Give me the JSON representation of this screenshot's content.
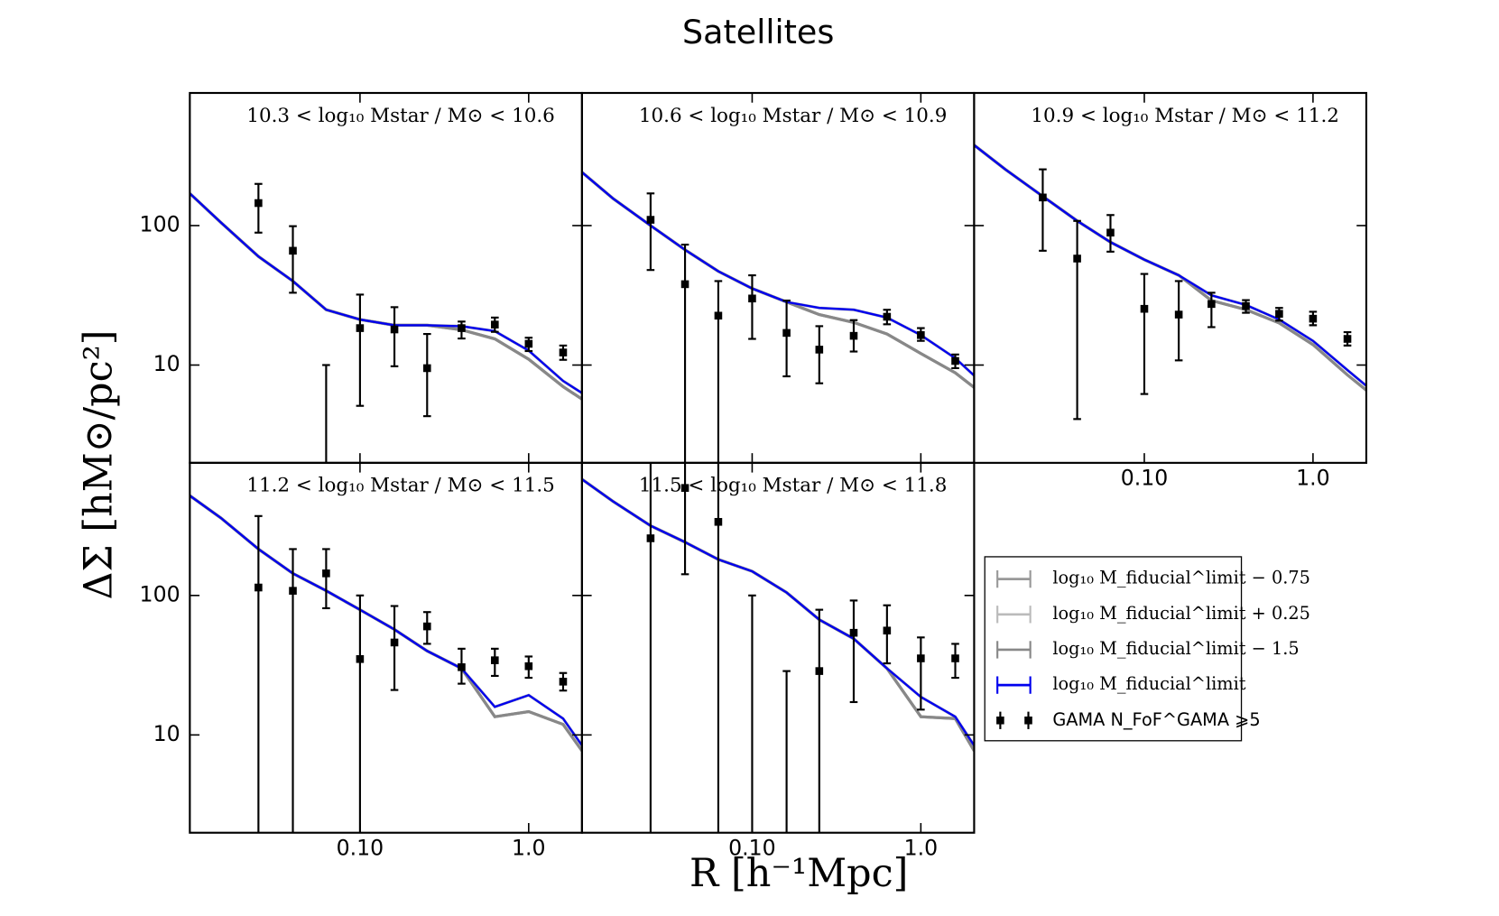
{
  "chart_data": {
    "type": "line",
    "title": "Satellites",
    "ylabel": "ΔΣ [hM⊙/pc²]",
    "xlabel": "R [h⁻¹Mpc]",
    "log_x": true,
    "log_y": true,
    "xlim": [
      0.0098,
      2.07
    ],
    "ylim": [
      1.99,
      893
    ],
    "xticks": [
      {
        "value": 0.1,
        "label": "0.10"
      },
      {
        "value": 1,
        "label": "1.0"
      }
    ],
    "yticks": [
      10,
      100
    ],
    "legend": "center right",
    "series": [
      {
        "name": "log₁₀ M_fiducial^limit − 0.75",
        "color": "#999999"
      },
      {
        "name": "log₁₀ M_fiducial^limit + 0.25",
        "color": "#bbbbbb"
      },
      {
        "name": "log₁₀ M_fiducial^limit − 1.5",
        "color": "#888888"
      },
      {
        "name": "log₁₀ M_fiducial^limit",
        "color": "#0000ee"
      }
    ],
    "gama": {
      "name": "GAMA N_FoF^GAMA ⩾5",
      "color": "#000000"
    },
    "model_x": [
      0.0098,
      0.015,
      0.025,
      0.04,
      0.063,
      0.1,
      0.16,
      0.25,
      0.4,
      0.63,
      1.0,
      1.6,
      2.07
    ],
    "gama_x": [
      0.025,
      0.04,
      0.063,
      0.1,
      0.16,
      0.25,
      0.4,
      0.63,
      1.0,
      1.6
    ],
    "panels": [
      {
        "title": "10.3 < log₁₀ Mstar / M⊙ < 10.6",
        "values": [
          [
            170,
            105,
            60,
            40,
            24.9,
            21.2,
            19.3,
            19.3,
            17.9,
            15.4,
            11,
            7.0,
            5.7
          ],
          [
            170,
            105,
            60,
            40,
            24.9,
            21.2,
            19.3,
            19.3,
            19,
            17.5,
            12.7,
            7.7,
            6.3
          ],
          [
            170,
            105,
            60,
            40,
            24.9,
            21.2,
            19.3,
            19.3,
            17.9,
            15.4,
            11,
            7.0,
            5.7
          ],
          [
            170,
            105,
            60,
            40,
            24.9,
            21.2,
            19.3,
            19.3,
            19,
            17.5,
            12.7,
            7.7,
            6.3
          ]
        ],
        "gama_values": [
          145,
          66,
          null,
          18.4,
          18,
          9.5,
          18.4,
          19.5,
          14.2,
          12.3
        ],
        "gama_lower": [
          89,
          33,
          null,
          5.1,
          9.8,
          4.3,
          15.5,
          17.3,
          12.6,
          10.9
        ],
        "gama_upper": [
          199,
          99,
          10,
          32,
          26,
          16.7,
          20.5,
          21.9,
          15.7,
          13.8
        ]
      },
      {
        "title": "10.6 < log₁₀ Mstar / M⊙ < 10.9",
        "values": [
          [
            241,
            156,
            100,
            67,
            47,
            35.4,
            28.3,
            23,
            20.2,
            16.7,
            12.1,
            8.8,
            6.9
          ],
          [
            241,
            156,
            100,
            67,
            47,
            35.4,
            28.3,
            25.7,
            24.9,
            21.9,
            16.4,
            11.2,
            8.4
          ],
          [
            241,
            156,
            100,
            67,
            47,
            35.4,
            28.3,
            23,
            20.2,
            16.7,
            12.1,
            8.8,
            6.9
          ],
          [
            241,
            156,
            100,
            67,
            47,
            35.4,
            28.3,
            25.7,
            24.9,
            21.9,
            16.4,
            11.2,
            8.4
          ]
        ],
        "gama_values": [
          110,
          38,
          22.6,
          30,
          17,
          12.9,
          16.2,
          22.2,
          16.4,
          10.7
        ],
        "gama_lower": [
          48,
          null,
          null,
          15.4,
          8.3,
          7.4,
          12.5,
          19.6,
          14.9,
          9.5
        ],
        "gama_upper": [
          170,
          73,
          40,
          44,
          29,
          19,
          21,
          24.9,
          18.4,
          11.9
        ]
      },
      {
        "title": "10.9 < log₁₀ Mstar / M⊙ < 11.2",
        "values": [
          [
            377,
            253,
            162,
            108,
            76,
            57,
            44,
            29,
            25,
            20,
            14,
            8.5,
            6.6
          ],
          [
            377,
            253,
            162,
            108,
            76,
            57,
            44,
            31.6,
            27,
            21.2,
            14.9,
            9.2,
            7.1
          ],
          [
            377,
            253,
            162,
            108,
            76,
            57,
            44,
            29,
            25,
            20,
            14,
            8.5,
            6.6
          ],
          [
            377,
            253,
            162,
            108,
            76,
            57,
            44,
            31.6,
            27,
            21.2,
            14.9,
            9.2,
            7.1
          ]
        ],
        "gama_values": [
          159,
          58,
          89,
          25.3,
          23,
          27.4,
          26.5,
          23.3,
          21.5,
          15.4
        ],
        "gama_lower": [
          66,
          4.1,
          65,
          6.2,
          10.8,
          18.7,
          23.7,
          20.8,
          19.3,
          13.8
        ],
        "gama_upper": [
          253,
          108,
          119,
          45,
          40,
          33,
          29.2,
          25.7,
          24.1,
          17.2
        ]
      },
      {
        "title": "11.2 < log₁₀ Mstar / M⊙ < 11.5",
        "values": [
          [
            519,
            359,
            215,
            144,
            108,
            79,
            57,
            40,
            30,
            13.5,
            14.7,
            11.9,
            7.7
          ],
          [
            519,
            359,
            215,
            144,
            108,
            79,
            57,
            40,
            30,
            15.9,
            19.3,
            13.1,
            8.4
          ],
          [
            519,
            359,
            215,
            144,
            108,
            79,
            57,
            40,
            30,
            13.5,
            14.7,
            11.9,
            7.7
          ],
          [
            519,
            359,
            215,
            144,
            108,
            79,
            57,
            40,
            30,
            15.9,
            19.3,
            13.1,
            8.4
          ]
        ],
        "gama_values": [
          114,
          108,
          144,
          35,
          46,
          60,
          30.6,
          34.3,
          31.1,
          24.1
        ],
        "gama_lower": [
          null,
          null,
          81,
          null,
          21,
          45,
          23.3,
          26.5,
          25.7,
          20.8
        ],
        "gama_upper": [
          371,
          215,
          215,
          100,
          84,
          76,
          41.5,
          41.5,
          36.5,
          27.8
        ]
      },
      {
        "title": "11.5 < log₁₀ Mstar / M⊙ < 11.8",
        "values": [
          [
            681,
            472,
            316,
            241,
            181,
            149,
            105,
            67,
            49,
            30,
            13.5,
            13.1,
            7.7
          ],
          [
            681,
            472,
            316,
            241,
            181,
            149,
            105,
            67,
            49,
            30,
            18.7,
            13.5,
            8.4
          ],
          [
            681,
            472,
            316,
            241,
            181,
            149,
            105,
            67,
            49,
            30,
            13.5,
            13.1,
            7.7
          ],
          [
            681,
            472,
            316,
            241,
            181,
            149,
            105,
            67,
            49,
            30,
            18.7,
            13.5,
            8.4
          ]
        ],
        "gama_values": [
          257,
          590,
          337,
          null,
          null,
          28.7,
          54,
          56,
          35.4,
          35.4
        ],
        "gama_lower": [
          null,
          142,
          null,
          null,
          null,
          null,
          17.2,
          32.6,
          15.2,
          25.7
        ],
        "gama_upper": [
          null,
          null,
          null,
          100,
          28.7,
          79,
          92,
          85,
          50,
          45
        ]
      }
    ]
  }
}
